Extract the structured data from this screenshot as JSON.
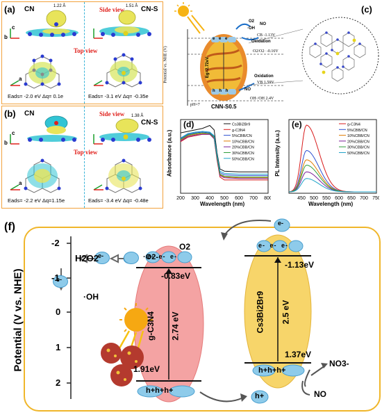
{
  "panel_a": {
    "label": "(a)",
    "left_title": "CN",
    "right_title": "CN-S",
    "side_view": "Side view",
    "top_view": "Top view",
    "bond_left": "1.22 Å",
    "bond_right": "1.51 Å",
    "axis_c": "c",
    "axis_b": "b",
    "axis_a": "a",
    "energy_left": "Eads= -2.0 eV  Δq= 0.1e",
    "energy_right": "Eads= -3.1 eV  Δq= -0.35e"
  },
  "panel_b": {
    "label": "(b)",
    "left_title": "CN",
    "right_title": "CN-S",
    "side_view": "Side view",
    "top_view": "Top view",
    "bond_right": "1.38 Å",
    "axis_c": "c",
    "axis_b": "b",
    "axis_a": "a",
    "energy_left": "Eads= -2.2 eV  Δq=1.15e",
    "energy_right": "Eads= -3.4 eV  Δq= -0.48e"
  },
  "panel_c": {
    "label": "(c)",
    "ylabel": "Potential vs. NHE (V)",
    "cb": "CB  -1.13V",
    "o2": "O2/O2·  -0.16V",
    "vb": "VB  1.59V",
    "oh": "OH·/OH   2.4V",
    "ph": "pH=7",
    "sample": "CNN-S0.5",
    "eg": "Eg=2.72eV",
    "no": "NO",
    "o2_top": "O2",
    "oh_top": "·OH",
    "oxidation1": "Oxidation",
    "oxidation2": "Oxidation",
    "no_bottom": "NO",
    "e_labels": "e e e",
    "h_labels": "h h h"
  },
  "panel_d": {
    "label": "(d)",
    "ylabel": "Absorbance (a.u.)",
    "xlabel": "Wavelength (nm)"
  },
  "panel_e": {
    "label": "(e)",
    "ylabel": "PL Intensity (a.u.)",
    "xlabel": "Wavelength (nm)"
  },
  "chart_data": [
    {
      "type": "line",
      "xlabel": "Wavelength (nm)",
      "ylabel": "Absorbance (a.u.)",
      "xlim": [
        200,
        800
      ],
      "xticks": [
        200,
        300,
        400,
        500,
        600,
        700,
        800
      ],
      "series": [
        {
          "name": "Cs3Bi2Br9",
          "color": "#111111",
          "x": [
            200,
            250,
            300,
            350,
            400,
            430,
            450,
            470,
            500,
            600,
            700,
            800
          ],
          "y": [
            0.82,
            0.84,
            0.86,
            0.88,
            0.92,
            0.86,
            0.55,
            0.33,
            0.3,
            0.29,
            0.29,
            0.29
          ]
        },
        {
          "name": "g-C3N4",
          "color": "#d81b1b",
          "x": [
            200,
            250,
            300,
            350,
            400,
            430,
            450,
            470,
            500,
            600,
            700,
            800
          ],
          "y": [
            0.7,
            0.76,
            0.78,
            0.8,
            0.8,
            0.74,
            0.45,
            0.22,
            0.18,
            0.18,
            0.18,
            0.18
          ]
        },
        {
          "name": "5%CBB/CN",
          "color": "#2c4fd1",
          "x": [
            200,
            250,
            300,
            350,
            400,
            430,
            450,
            470,
            500,
            600,
            700,
            800
          ],
          "y": [
            0.74,
            0.8,
            0.82,
            0.83,
            0.82,
            0.77,
            0.5,
            0.28,
            0.25,
            0.24,
            0.24,
            0.24
          ]
        },
        {
          "name": "10%CBB/CN",
          "color": "#e07b00",
          "x": [
            200,
            250,
            300,
            350,
            400,
            430,
            450,
            470,
            500,
            600,
            700,
            800
          ],
          "y": [
            0.72,
            0.78,
            0.8,
            0.81,
            0.81,
            0.75,
            0.48,
            0.25,
            0.22,
            0.21,
            0.21,
            0.21
          ]
        },
        {
          "name": "20%CBB/CN",
          "color": "#7a1f9a",
          "x": [
            200,
            250,
            300,
            350,
            400,
            430,
            450,
            470,
            500,
            600,
            700,
            800
          ],
          "y": [
            0.71,
            0.77,
            0.79,
            0.8,
            0.8,
            0.74,
            0.47,
            0.24,
            0.21,
            0.2,
            0.2,
            0.2
          ]
        },
        {
          "name": "30%CBB/CN",
          "color": "#2e9e3a",
          "x": [
            200,
            250,
            300,
            350,
            400,
            430,
            450,
            470,
            500,
            600,
            700,
            800
          ],
          "y": [
            0.73,
            0.79,
            0.81,
            0.82,
            0.81,
            0.76,
            0.49,
            0.26,
            0.23,
            0.22,
            0.22,
            0.22
          ]
        },
        {
          "name": "50%CBB/CN",
          "color": "#1fa3c9",
          "x": [
            200,
            250,
            300,
            350,
            400,
            430,
            450,
            470,
            500,
            600,
            700,
            800
          ],
          "y": [
            0.75,
            0.81,
            0.83,
            0.84,
            0.83,
            0.78,
            0.52,
            0.3,
            0.27,
            0.26,
            0.26,
            0.26
          ]
        }
      ]
    },
    {
      "type": "line",
      "xlabel": "Wavelength (nm)",
      "ylabel": "PL Intensity (a.u.)",
      "xlim": [
        400,
        750
      ],
      "xticks": [
        450,
        500,
        550,
        600,
        650,
        700,
        750
      ],
      "series": [
        {
          "name": "g-C3N4",
          "color": "#d81b1b",
          "peak": 1.0
        },
        {
          "name": "5%CBB/CN",
          "color": "#2c4fd1",
          "peak": 0.62
        },
        {
          "name": "10%CBB/CN",
          "color": "#e07b00",
          "peak": 0.48
        },
        {
          "name": "20%CBB/CN",
          "color": "#7a1f9a",
          "peak": 0.3
        },
        {
          "name": "30%CBB/CN",
          "color": "#2e9e3a",
          "peak": 0.4
        },
        {
          "name": "50%CBB/CN",
          "color": "#1fa3c9",
          "peak": 0.2
        }
      ]
    }
  ],
  "panel_f": {
    "label": "(f)",
    "ylabel": "Potential (V vs. NHE)",
    "yticks": [
      "-2",
      "-1",
      "0",
      "1",
      "2"
    ],
    "h2o2": "H2O2",
    "oh": "·OH",
    "o2minus": "·O2-",
    "o2": "O2",
    "e_small": "e-",
    "gcn_name": "g-C3N4",
    "gcn_gap": "2.74 eV",
    "gcn_cb": "-0.83eV",
    "gcn_vb": "1.91eV",
    "cbb_name": "Cs3Bi2Br9",
    "cbb_gap": "2.5 eV",
    "cbb_cb": "-1.13eV",
    "cbb_vb": "1.37eV",
    "no3": "NO3-",
    "no": "NO",
    "hplus": "h+",
    "elec_row": "e- e- e-",
    "hole_row": "h+h+h+"
  },
  "colors": {
    "orange_frame": "#f2a23c",
    "panel_f_frame": "#f0b62a",
    "isosurface_yellow": "#e8e45a",
    "isosurface_cyan": "#31c4d4",
    "gcn_red": "#f4a3a3",
    "cbb_yellow": "#f7d56a",
    "bubble_blue": "#8ecbea"
  }
}
